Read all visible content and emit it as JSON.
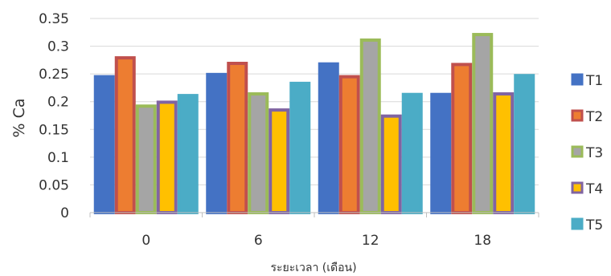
{
  "chart_data": {
    "type": "bar",
    "title": "",
    "xlabel": "ระยะเวลา (เดือน)",
    "ylabel": "% Ca",
    "categories": [
      "0",
      "6",
      "12",
      "18"
    ],
    "ylim": [
      0,
      0.35
    ],
    "yticks": [
      "0",
      "0.05",
      "0.1",
      "0.15",
      "0.2",
      "0.25",
      "0.3",
      "0.35"
    ],
    "grid": true,
    "legend": "right",
    "series": [
      {
        "name": "T1",
        "values": [
          0.245,
          0.249,
          0.268,
          0.213
        ],
        "color": "#4472C4",
        "border": "#4472C4"
      },
      {
        "name": "T2",
        "values": [
          0.279,
          0.269,
          0.245,
          0.267
        ],
        "color": "#ED7D31",
        "border": "#C0504D"
      },
      {
        "name": "T3",
        "values": [
          0.192,
          0.214,
          0.311,
          0.321
        ],
        "color": "#A5A5A5",
        "border": "#9BBB59"
      },
      {
        "name": "T4",
        "values": [
          0.199,
          0.185,
          0.174,
          0.214
        ],
        "color": "#FFC000",
        "border": "#8064A2"
      },
      {
        "name": "T5",
        "values": [
          0.211,
          0.233,
          0.213,
          0.247
        ],
        "color": "#4BACC6",
        "border": "#4BACC6"
      }
    ]
  }
}
